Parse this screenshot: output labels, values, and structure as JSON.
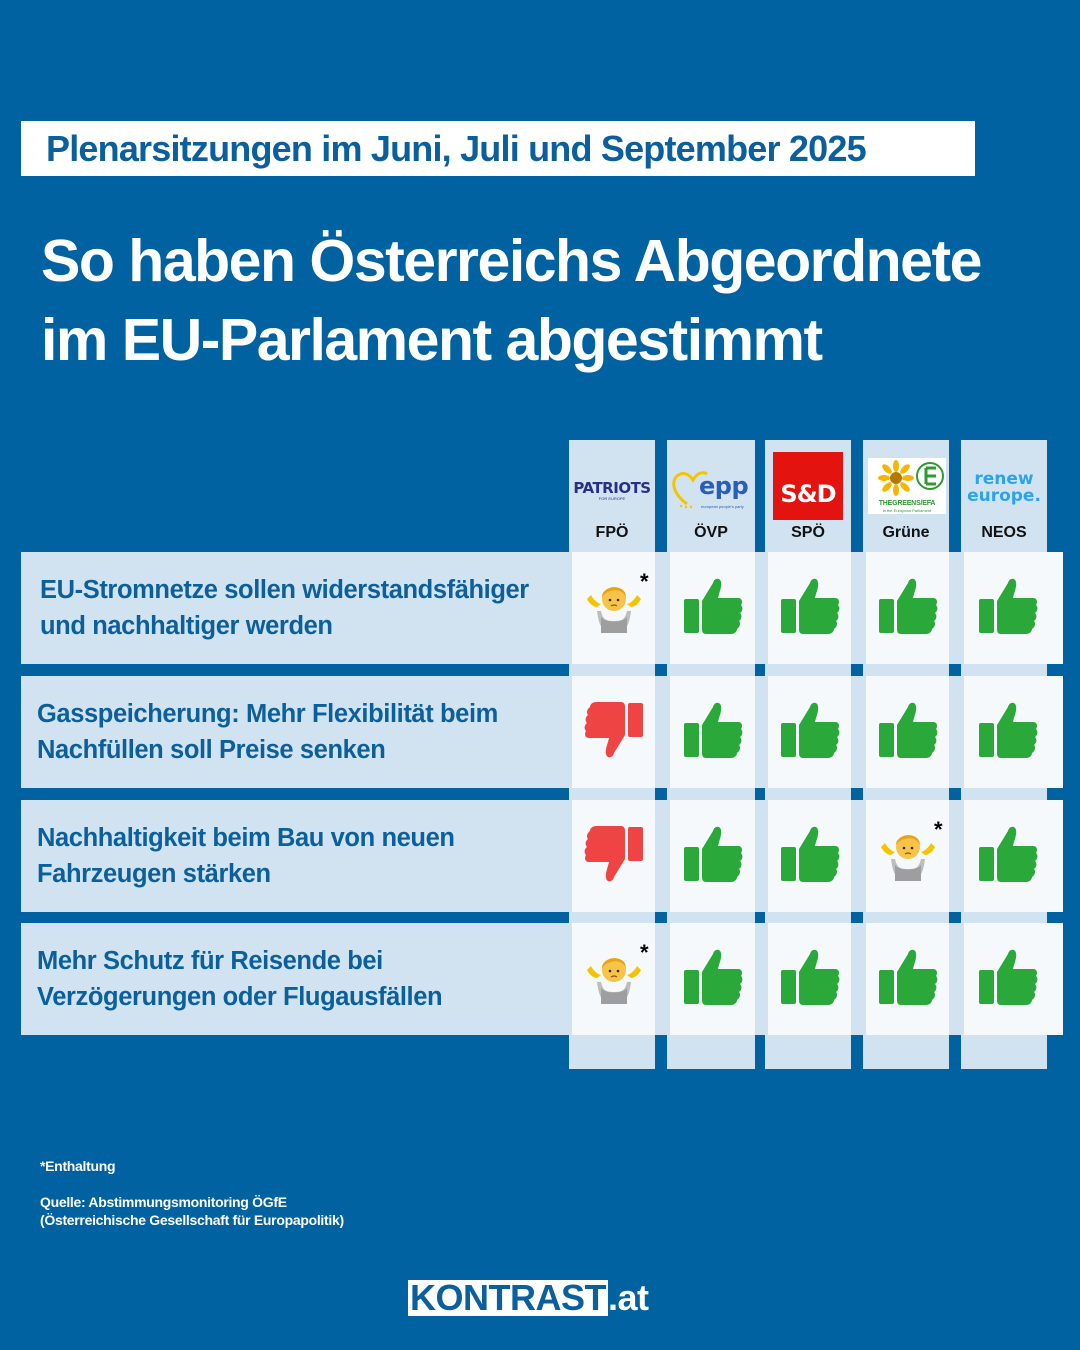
{
  "header": {
    "subtitle": "Plenarsitzungen im Juni, Juli und September 2025",
    "title": "So haben Österreichs Abgeordnete im EU-Parlament abgestimmt"
  },
  "parties": [
    {
      "name": "FPÖ",
      "group_logo_text": "PATRIOTS",
      "group_logo_subtext": "FOR EUROPE"
    },
    {
      "name": "ÖVP",
      "group_logo_text": "epp",
      "group_logo_subtext": "european people's party"
    },
    {
      "name": "SPÖ",
      "group_logo_text": "S&D",
      "group_logo_subtext": ""
    },
    {
      "name": "Grüne",
      "group_logo_text": "THEGREENS/EFA",
      "group_logo_subtext": "in the European Parliament"
    },
    {
      "name": "NEOS",
      "group_logo_text": "renew",
      "group_logo_subtext": "europe."
    }
  ],
  "rows": [
    {
      "topic": "EU-Stromnetze sollen widerstandsfähiger und nachhaltiger werden",
      "votes": [
        "abstain",
        "yes",
        "yes",
        "yes",
        "yes"
      ]
    },
    {
      "topic": "Gasspeicherung: Mehr Flexibilität beim Nachfüllen soll Preise senken",
      "votes": [
        "no",
        "yes",
        "yes",
        "yes",
        "yes"
      ]
    },
    {
      "topic": "Nachhaltigkeit beim Bau von neuen Fahrzeugen stärken",
      "votes": [
        "no",
        "yes",
        "yes",
        "abstain",
        "yes"
      ]
    },
    {
      "topic": "Mehr Schutz für Reisende bei Verzögerungen oder Flugausfällen",
      "votes": [
        "abstain",
        "yes",
        "yes",
        "yes",
        "yes"
      ]
    }
  ],
  "vote_icons": {
    "yes": "thumbs-up-icon",
    "no": "thumbs-down-icon",
    "abstain": "shrug-icon"
  },
  "abstain_marker": "*",
  "footer": {
    "footnote": "*Enthaltung",
    "source_line1": "Quelle: Abstimmungsmonitoring ÖGfE",
    "source_line2": "(Österreichische Gesellschaft für Europapolitik)",
    "brand_main": "KONTRAST",
    "brand_tld": ".at"
  },
  "colors": {
    "background": "#0062a1",
    "yes": "#2aa83a",
    "no": "#ef4444",
    "row_band": "#d1e3f0",
    "cell": "#f6f9fc",
    "text_blue": "#0a5f9c"
  }
}
